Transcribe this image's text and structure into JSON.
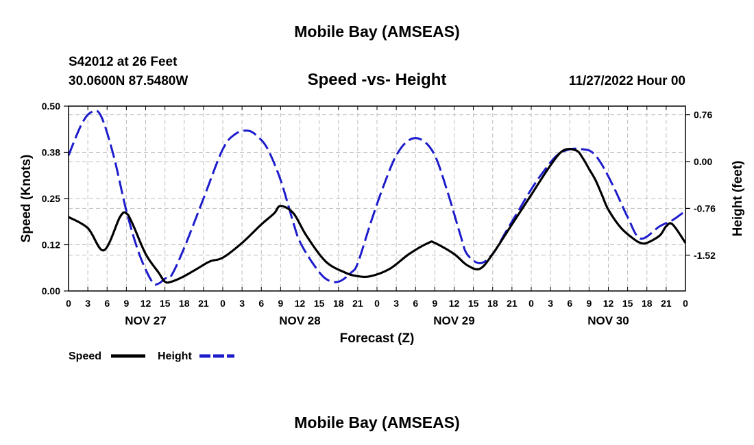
{
  "header": {
    "title": "Mobile Bay (AMSEAS)",
    "station": "S42012 at 26 Feet",
    "coords": "30.0600N  87.5480W",
    "subtitle": "Speed -vs- Height",
    "datetime": "11/27/2022 Hour 00",
    "footer_title": "Mobile Bay (AMSEAS)"
  },
  "chart_data": {
    "type": "line",
    "title": "Speed -vs- Height",
    "xlabel": "Forecast (Z)",
    "ylabel_left": "Speed (Knots)",
    "ylabel_right": "Height (feet)",
    "x_range_hours": [
      0,
      96
    ],
    "x_tick_hours": [
      0,
      3,
      6,
      9,
      12,
      15,
      18,
      21,
      24,
      27,
      30,
      33,
      36,
      39,
      42,
      45,
      48,
      51,
      54,
      57,
      60,
      63,
      66,
      69,
      72,
      75,
      78,
      81,
      84,
      87,
      90,
      93,
      96
    ],
    "x_tick_labels": [
      "0",
      "3",
      "6",
      "9",
      "12",
      "15",
      "18",
      "21",
      "0",
      "3",
      "6",
      "9",
      "12",
      "15",
      "18",
      "21",
      "0",
      "3",
      "6",
      "9",
      "12",
      "15",
      "18",
      "21",
      "0",
      "3",
      "6",
      "9",
      "12",
      "15",
      "18",
      "21",
      "0"
    ],
    "day_labels": [
      {
        "label": "NOV 27",
        "hour": 12
      },
      {
        "label": "NOV 28",
        "hour": 36
      },
      {
        "label": "NOV 29",
        "hour": 60
      },
      {
        "label": "NOV 30",
        "hour": 84
      }
    ],
    "y_left": {
      "range": [
        0,
        0.5
      ],
      "ticks": [
        0,
        0.125,
        0.25,
        0.375,
        0.5
      ],
      "tick_labels": [
        "0.00",
        "0.12",
        "0.25",
        "0.38",
        "0.50"
      ]
    },
    "y_right": {
      "range": [
        -2.1,
        0.9
      ],
      "ticks": [
        -1.52,
        -0.76,
        0.0,
        0.76
      ],
      "tick_labels": [
        "-1.52",
        "-0.76",
        "0.00",
        "0.76"
      ]
    },
    "grid": true,
    "series": [
      {
        "name": "Speed",
        "axis": "left",
        "color": "#000000",
        "style": "solid",
        "x": [
          0,
          3,
          5.5,
          8,
          9,
          10,
          12,
          14,
          15,
          16,
          18,
          20,
          22,
          24,
          27,
          30,
          32,
          33,
          35,
          37,
          40,
          43,
          45,
          47,
          50,
          53,
          56,
          57,
          60,
          62,
          64,
          66,
          69,
          72,
          75,
          77,
          79,
          80,
          81,
          82,
          83,
          84,
          86,
          88,
          89,
          90,
          92,
          93,
          94,
          96
        ],
        "values": [
          0.2,
          0.17,
          0.11,
          0.2,
          0.21,
          0.18,
          0.1,
          0.05,
          0.025,
          0.025,
          0.04,
          0.06,
          0.08,
          0.09,
          0.13,
          0.18,
          0.21,
          0.23,
          0.21,
          0.15,
          0.08,
          0.05,
          0.04,
          0.04,
          0.06,
          0.1,
          0.13,
          0.13,
          0.1,
          0.07,
          0.06,
          0.1,
          0.18,
          0.26,
          0.34,
          0.38,
          0.38,
          0.36,
          0.33,
          0.3,
          0.26,
          0.22,
          0.17,
          0.14,
          0.13,
          0.13,
          0.15,
          0.175,
          0.18,
          0.13
        ]
      },
      {
        "name": "Height",
        "axis": "right",
        "color": "#1c1ccc",
        "style": "dashed",
        "x": [
          0,
          2,
          3.5,
          5,
          7,
          9,
          11,
          13,
          14,
          15,
          16,
          18,
          21,
          24,
          26,
          28,
          29.5,
          31,
          33,
          35,
          36,
          38,
          40,
          42,
          44,
          45,
          47,
          49,
          51,
          53,
          55,
          57,
          59,
          61,
          62,
          64,
          66,
          68,
          70,
          72,
          74,
          76,
          78,
          80,
          81.5,
          83,
          85,
          87,
          89,
          92,
          94,
          96
        ],
        "values": [
          0.1,
          0.6,
          0.8,
          0.75,
          0.1,
          -0.8,
          -1.5,
          -1.95,
          -1.98,
          -1.9,
          -1.85,
          -1.4,
          -0.6,
          0.2,
          0.45,
          0.5,
          0.4,
          0.2,
          -0.3,
          -1.0,
          -1.3,
          -1.65,
          -1.9,
          -1.95,
          -1.8,
          -1.65,
          -1.0,
          -0.4,
          0.1,
          0.35,
          0.35,
          0.1,
          -0.5,
          -1.2,
          -1.5,
          -1.65,
          -1.5,
          -1.15,
          -0.8,
          -0.45,
          -0.15,
          0.1,
          0.2,
          0.2,
          0.15,
          -0.05,
          -0.45,
          -0.9,
          -1.25,
          -1.05,
          -0.95,
          -0.8
        ]
      }
    ],
    "legend": {
      "position": "bottom-left",
      "entries": [
        "Speed",
        "Height"
      ]
    }
  }
}
